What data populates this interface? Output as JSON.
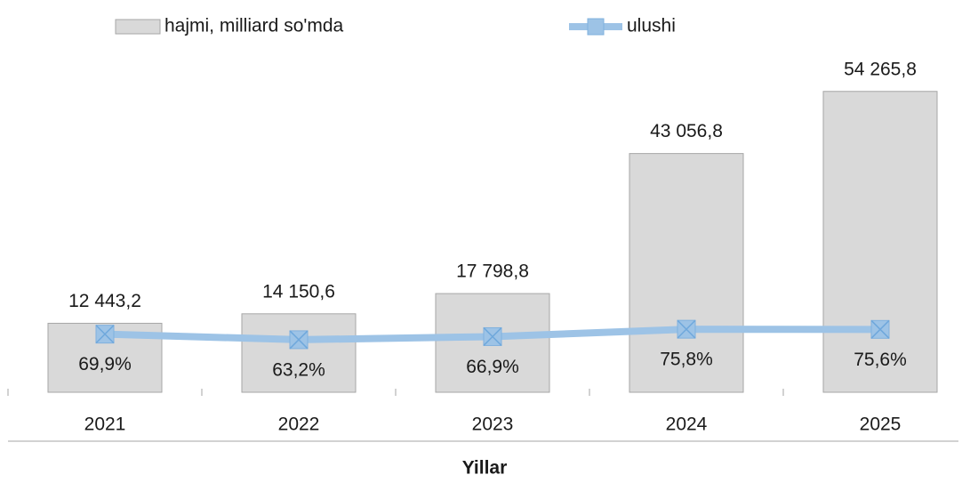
{
  "chart_data": {
    "type": "bar_line",
    "x_label": "Yillar",
    "categories": [
      "2021",
      "2022",
      "2023",
      "2024",
      "2025"
    ],
    "series": [
      {
        "name": "hajmi, milliard so'mda",
        "type": "bar",
        "color": "#d9d9d9",
        "values": [
          12443.2,
          14150.6,
          17798.8,
          43056.8,
          54265.8
        ],
        "value_labels": [
          "12 443,2",
          "14 150,6",
          "17 798,8",
          "43 056,8",
          "54 265,8"
        ]
      },
      {
        "name": "ulushi",
        "type": "line",
        "axis": "y2",
        "color": "#9dc3e6",
        "values": [
          69.9,
          63.2,
          66.9,
          75.8,
          75.6
        ],
        "value_labels": [
          "69,9%",
          "63,2%",
          "66,9%",
          "75,8%",
          "75,6%"
        ]
      }
    ],
    "ylim": [
      0,
      60000
    ],
    "y2lim": [
      0,
      400
    ],
    "legend": "top"
  }
}
